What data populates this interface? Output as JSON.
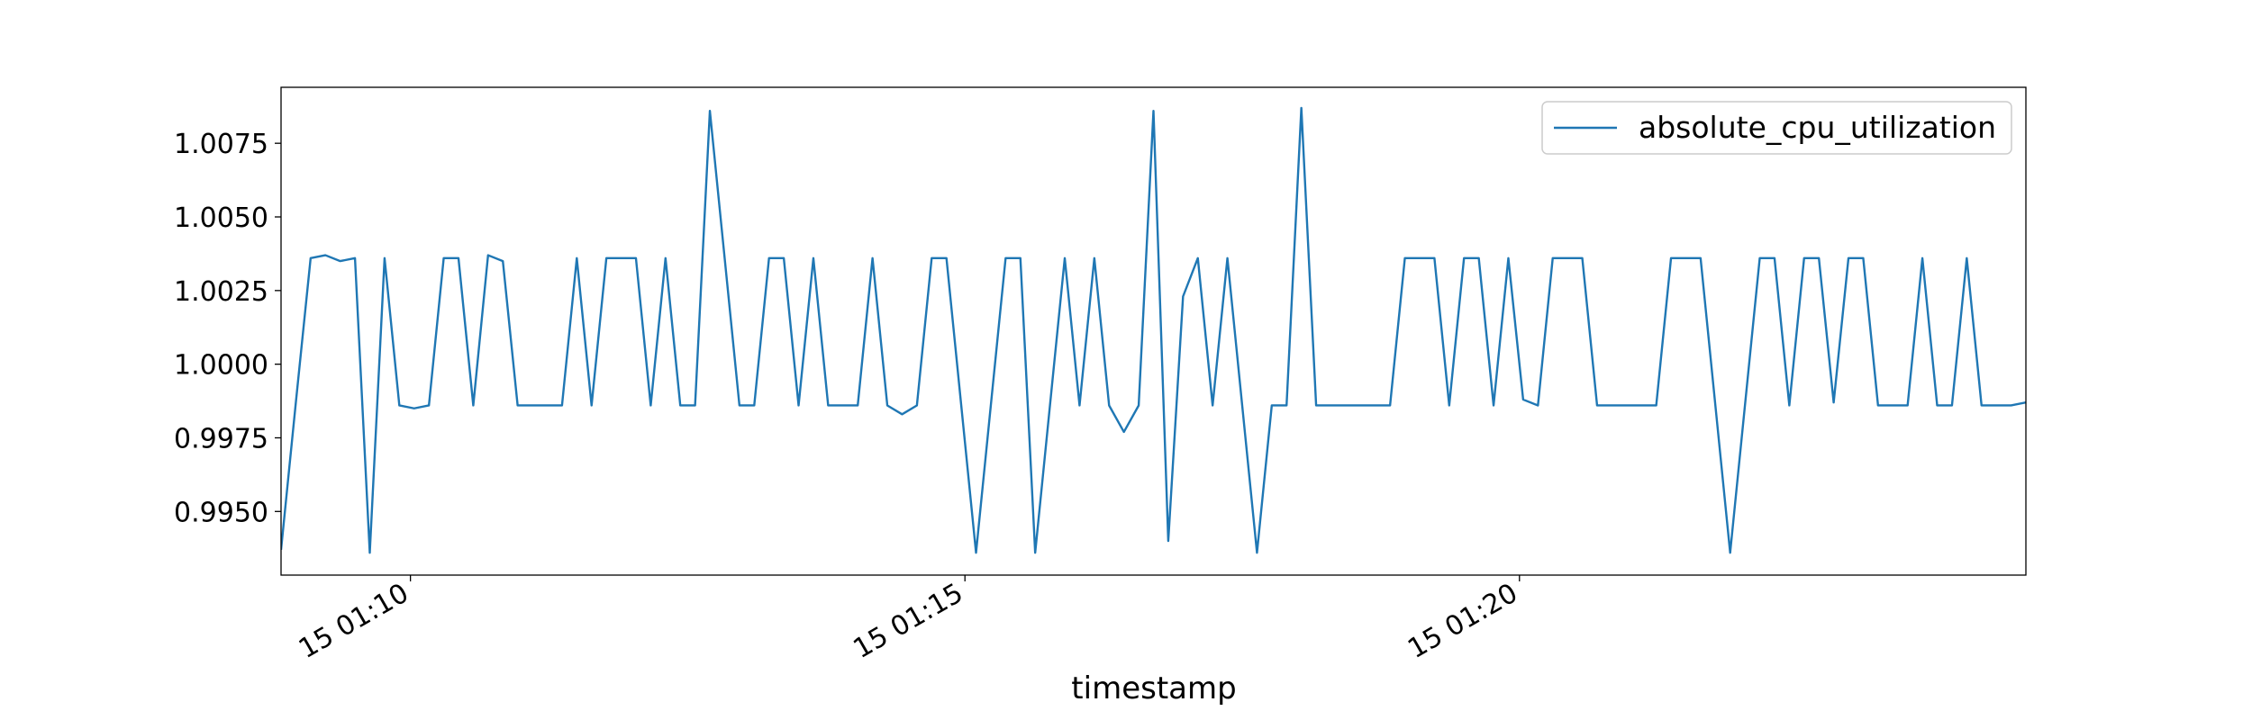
{
  "chart_data": {
    "type": "line",
    "x_label": "timestamp",
    "x": [
      "15 01:08:50",
      "15 01:08:58",
      "15 01:09:06",
      "15 01:09:14",
      "15 01:09:22",
      "15 01:09:30",
      "15 01:09:38",
      "15 01:09:46",
      "15 01:09:54",
      "15 01:10:02",
      "15 01:10:10",
      "15 01:10:18",
      "15 01:10:26",
      "15 01:10:34",
      "15 01:10:42",
      "15 01:10:50",
      "15 01:10:58",
      "15 01:11:06",
      "15 01:11:14",
      "15 01:11:22",
      "15 01:11:30",
      "15 01:11:38",
      "15 01:11:46",
      "15 01:11:54",
      "15 01:12:02",
      "15 01:12:10",
      "15 01:12:18",
      "15 01:12:26",
      "15 01:12:34",
      "15 01:12:42",
      "15 01:12:50",
      "15 01:12:58",
      "15 01:13:06",
      "15 01:13:14",
      "15 01:13:22",
      "15 01:13:30",
      "15 01:13:38",
      "15 01:13:46",
      "15 01:13:54",
      "15 01:14:02",
      "15 01:14:10",
      "15 01:14:18",
      "15 01:14:26",
      "15 01:14:34",
      "15 01:14:42",
      "15 01:14:50",
      "15 01:14:58",
      "15 01:15:06",
      "15 01:15:14",
      "15 01:15:22",
      "15 01:15:30",
      "15 01:15:38",
      "15 01:15:46",
      "15 01:15:54",
      "15 01:16:02",
      "15 01:16:10",
      "15 01:16:18",
      "15 01:16:26",
      "15 01:16:34",
      "15 01:16:42",
      "15 01:16:50",
      "15 01:16:58",
      "15 01:17:06",
      "15 01:17:14",
      "15 01:17:22",
      "15 01:17:30",
      "15 01:17:38",
      "15 01:17:46",
      "15 01:17:54",
      "15 01:18:02",
      "15 01:18:10",
      "15 01:18:18",
      "15 01:18:26",
      "15 01:18:34",
      "15 01:18:42",
      "15 01:18:50",
      "15 01:18:58",
      "15 01:19:06",
      "15 01:19:14",
      "15 01:19:22",
      "15 01:19:30",
      "15 01:19:38",
      "15 01:19:46",
      "15 01:19:54",
      "15 01:20:02",
      "15 01:20:10",
      "15 01:20:18",
      "15 01:20:26",
      "15 01:20:34",
      "15 01:20:42",
      "15 01:20:50",
      "15 01:20:58",
      "15 01:21:06",
      "15 01:21:14",
      "15 01:21:22",
      "15 01:21:30",
      "15 01:21:38",
      "15 01:21:46",
      "15 01:21:54",
      "15 01:22:02",
      "15 01:22:10",
      "15 01:22:18",
      "15 01:22:26",
      "15 01:22:34",
      "15 01:22:42",
      "15 01:22:50",
      "15 01:22:58",
      "15 01:23:06",
      "15 01:23:14",
      "15 01:23:22",
      "15 01:23:30",
      "15 01:23:38",
      "15 01:23:46",
      "15 01:23:54",
      "15 01:24:02",
      "15 01:24:10",
      "15 01:24:18",
      "15 01:24:26",
      "15 01:24:34"
    ],
    "series": [
      {
        "name": "absolute_cpu_utilization",
        "color": "#1f77b4",
        "values": [
          0.9937,
          0.9987,
          1.0036,
          1.0037,
          1.0035,
          1.0036,
          0.9936,
          1.0036,
          0.9986,
          0.9985,
          0.9986,
          1.0036,
          1.0036,
          0.9986,
          1.0037,
          1.0035,
          0.9986,
          0.9986,
          0.9986,
          0.9986,
          1.0036,
          0.9986,
          1.0036,
          1.0036,
          1.0036,
          0.9986,
          1.0036,
          0.9986,
          0.9986,
          1.0086,
          1.0036,
          0.9986,
          0.9986,
          1.0036,
          1.0036,
          0.9986,
          1.0036,
          0.9986,
          0.9986,
          0.9986,
          1.0036,
          0.9986,
          0.9983,
          0.9986,
          1.0036,
          1.0036,
          0.9986,
          0.9936,
          0.9986,
          1.0036,
          1.0036,
          0.9936,
          0.9986,
          1.0036,
          0.9986,
          1.0036,
          0.9986,
          0.9977,
          0.9986,
          1.0086,
          0.994,
          1.0023,
          1.0036,
          0.9986,
          1.0036,
          0.9986,
          0.9936,
          0.9986,
          0.9986,
          1.0087,
          0.9986,
          0.9986,
          0.9986,
          0.9986,
          0.9986,
          0.9986,
          1.0036,
          1.0036,
          1.0036,
          0.9986,
          1.0036,
          1.0036,
          0.9986,
          1.0036,
          0.9988,
          0.9986,
          1.0036,
          1.0036,
          1.0036,
          0.9986,
          0.9986,
          0.9986,
          0.9986,
          0.9986,
          1.0036,
          1.0036,
          1.0036,
          0.9986,
          0.9936,
          0.9986,
          1.0036,
          1.0036,
          0.9986,
          1.0036,
          1.0036,
          0.9987,
          1.0036,
          1.0036,
          0.9986,
          0.9986,
          0.9986,
          1.0036,
          0.9986,
          0.9986,
          1.0036,
          0.9986,
          0.9986,
          0.9986,
          0.9987
        ]
      }
    ],
    "xlim": [
      "15 01:08:50",
      "15 01:24:34"
    ],
    "xticks": [
      {
        "value": "15 01:10:00",
        "label": "15 01:10"
      },
      {
        "value": "15 01:15:00",
        "label": "15 01:15"
      },
      {
        "value": "15 01:20:00",
        "label": "15 01:20"
      }
    ],
    "ylim": [
      0.99284,
      1.0094
    ],
    "yticks": [
      {
        "value": 0.995,
        "label": "0.9950"
      },
      {
        "value": 0.9975,
        "label": "0.9975"
      },
      {
        "value": 1.0,
        "label": "1.0000"
      },
      {
        "value": 1.0025,
        "label": "1.0025"
      },
      {
        "value": 1.005,
        "label": "1.0050"
      },
      {
        "value": 1.0075,
        "label": "1.0075"
      }
    ],
    "legend": "upper right",
    "grid": false
  }
}
